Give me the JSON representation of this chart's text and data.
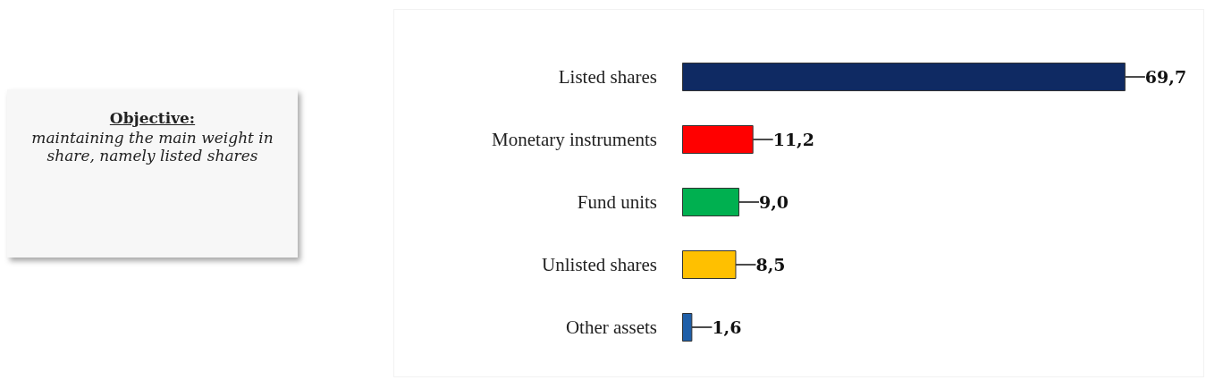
{
  "chart_data": {
    "type": "bar",
    "orientation": "horizontal",
    "categories": [
      "Listed shares",
      "Monetary instruments",
      "Fund units",
      "Unlisted shares",
      "Other assets"
    ],
    "values": [
      69.7,
      11.2,
      9.0,
      8.5,
      1.6
    ],
    "colors": [
      "#0f2a63",
      "#ff0000",
      "#00b050",
      "#ffc000",
      "#1f5fa8"
    ],
    "value_labels": [
      "69,7",
      "11,2",
      "9,0",
      "8,5",
      "1,6"
    ],
    "annotations": [
      "Objective:",
      "maintaining the main weight in share, namely listed shares"
    ]
  }
}
